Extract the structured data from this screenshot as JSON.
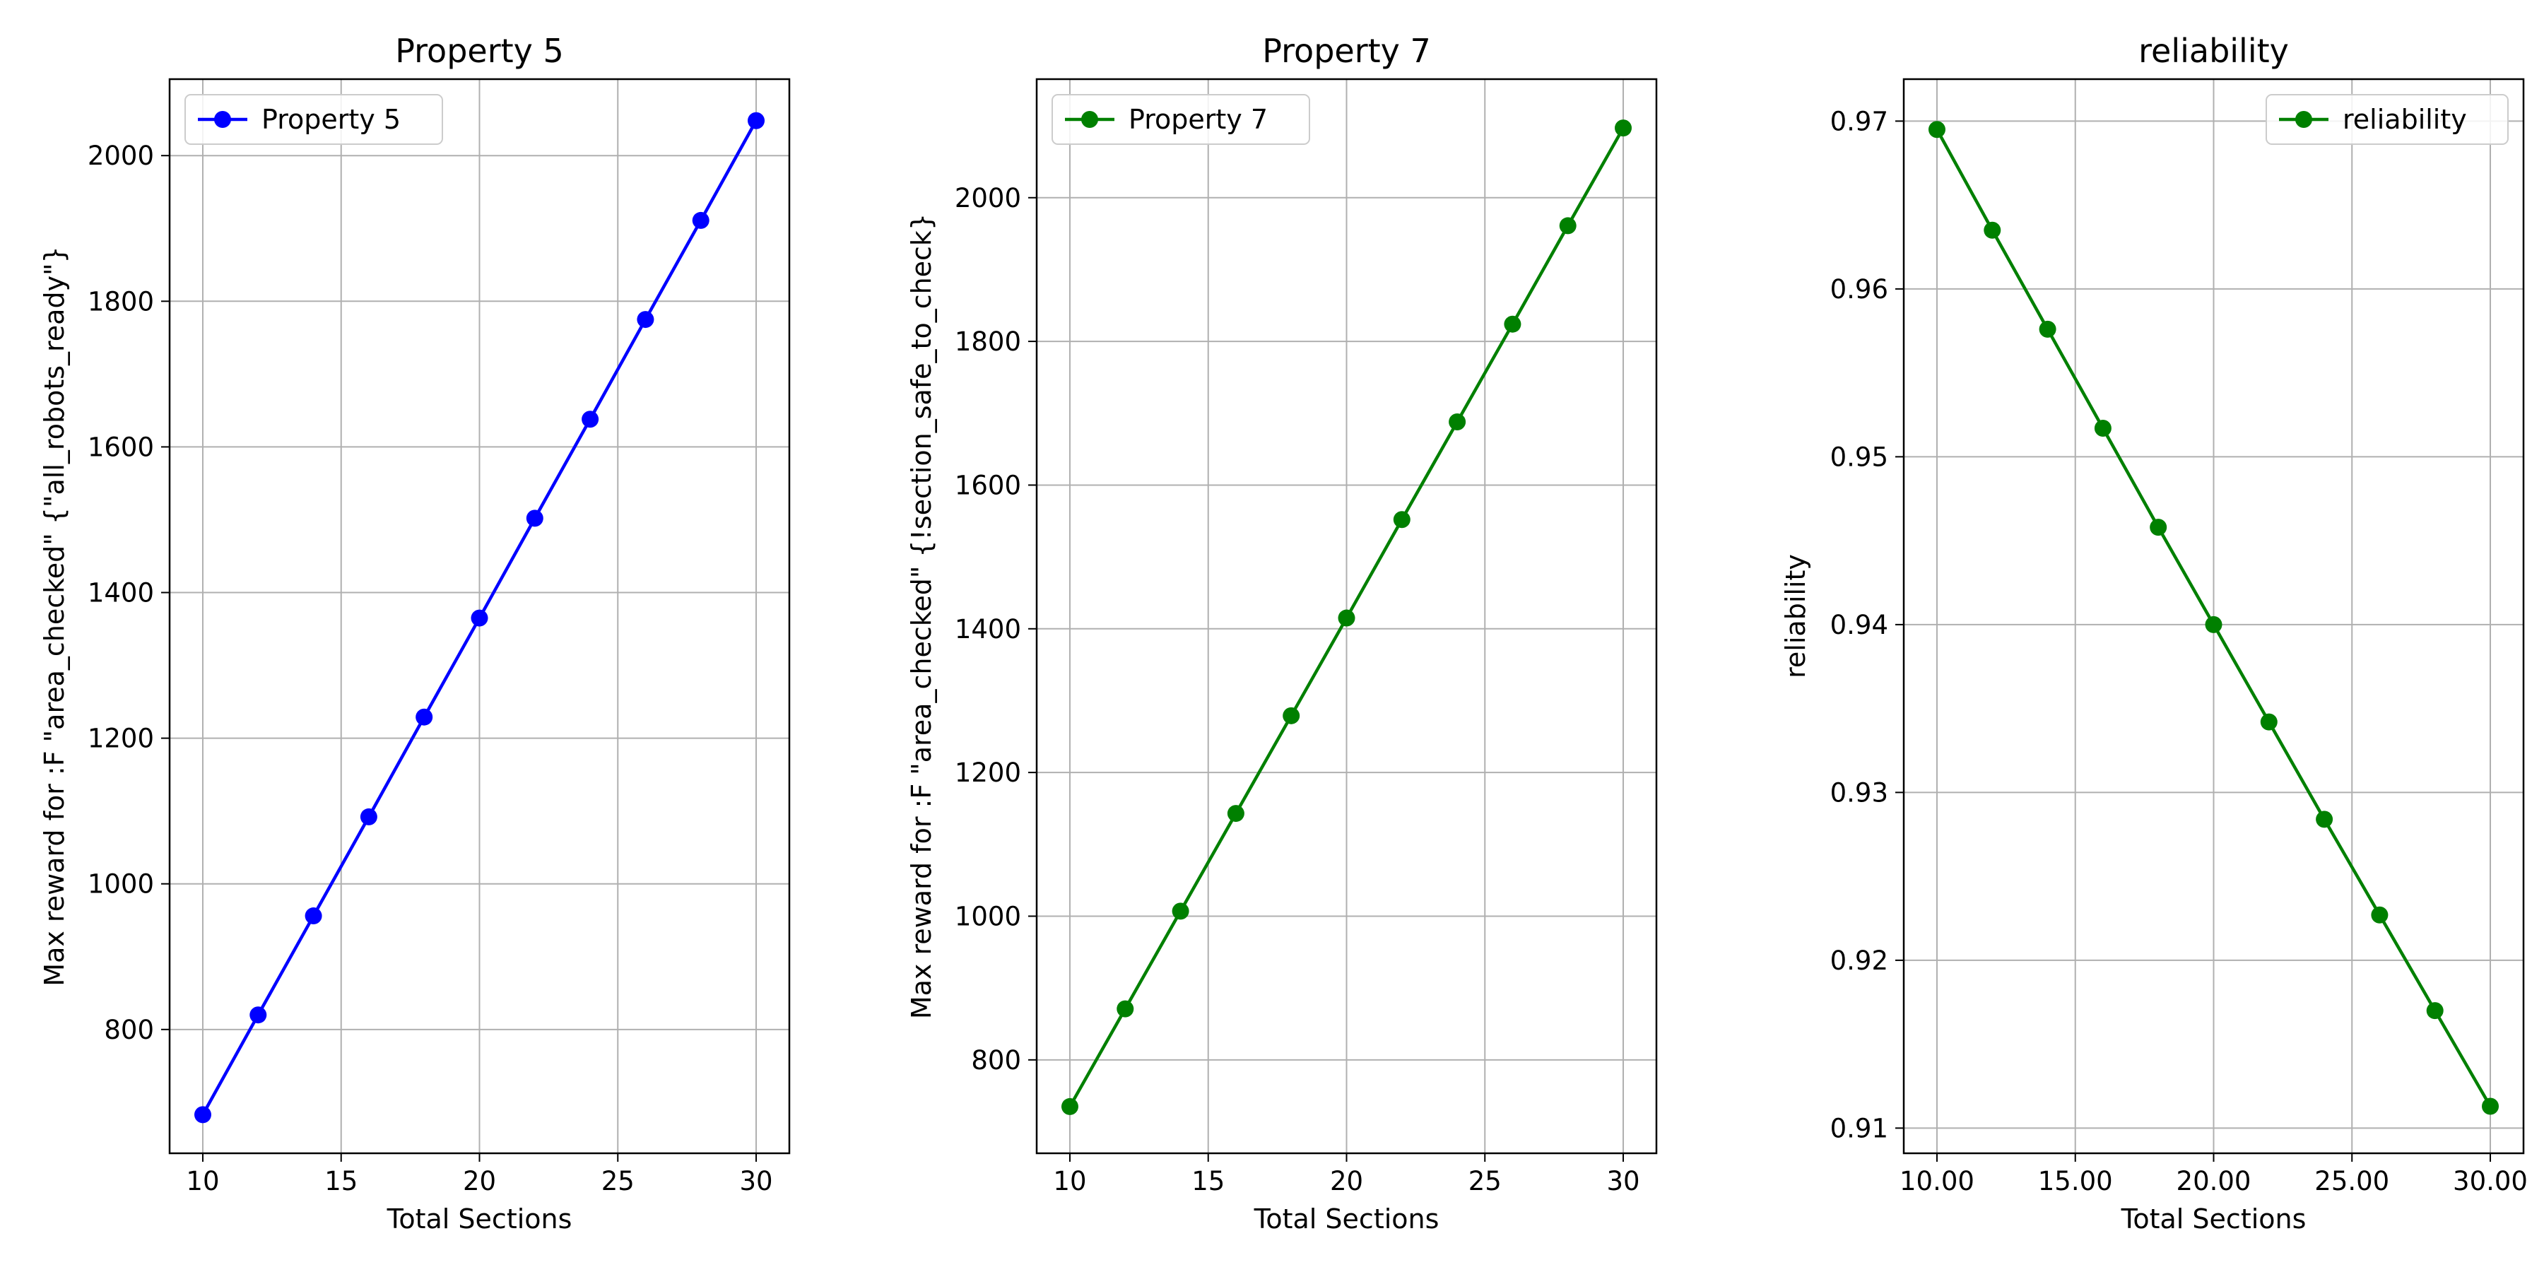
{
  "chart_data": [
    {
      "type": "line",
      "title": "Property 5",
      "xlabel": "Total Sections",
      "ylabel": "Max reward for :F \"area_checked\" {\"all_robots_ready\"}",
      "xlim": [
        8.8,
        31.2
      ],
      "ylim": [
        630,
        2105
      ],
      "xticks": [
        10,
        15,
        20,
        25,
        30
      ],
      "yticks": [
        800,
        1000,
        1200,
        1400,
        1600,
        1800,
        2000
      ],
      "tick_format": "int",
      "grid": true,
      "legend_position": "top-left",
      "color": "#0000ff",
      "series": [
        {
          "name": "Property 5",
          "x": [
            10,
            12,
            14,
            16,
            18,
            20,
            22,
            24,
            26,
            28,
            30
          ],
          "y": [
            683,
            820,
            956,
            1092,
            1229,
            1365,
            1502,
            1638,
            1775,
            1911,
            2048
          ]
        }
      ]
    },
    {
      "type": "line",
      "title": "Property 7",
      "xlabel": "Total Sections",
      "ylabel": "Max reward for :F \"area_checked\" {!section_safe_to_check}",
      "xlim": [
        8.8,
        31.2
      ],
      "ylim": [
        670,
        2165
      ],
      "xticks": [
        10,
        15,
        20,
        25,
        30
      ],
      "yticks": [
        800,
        1000,
        1200,
        1400,
        1600,
        1800,
        2000
      ],
      "tick_format": "int",
      "grid": true,
      "legend_position": "top-left",
      "color": "#008000",
      "series": [
        {
          "name": "Property 7",
          "x": [
            10,
            12,
            14,
            16,
            18,
            20,
            22,
            24,
            26,
            28,
            30
          ],
          "y": [
            735,
            871,
            1007,
            1143,
            1279,
            1415,
            1552,
            1688,
            1824,
            1961,
            2097
          ]
        }
      ]
    },
    {
      "type": "line",
      "title": "reliability",
      "xlabel": "Total Sections",
      "ylabel": "reliability",
      "xlim": [
        8.8,
        31.2
      ],
      "ylim": [
        0.9085,
        0.9725
      ],
      "xticks": [
        10,
        15,
        20,
        25,
        30
      ],
      "yticks": [
        0.91,
        0.92,
        0.93,
        0.94,
        0.95,
        0.96,
        0.97
      ],
      "tick_format": "2dp",
      "grid": true,
      "legend_position": "top-right",
      "color": "#008000",
      "series": [
        {
          "name": "reliability",
          "x": [
            10,
            12,
            14,
            16,
            18,
            20,
            22,
            24,
            26,
            28,
            30
          ],
          "y": [
            0.9695,
            0.9635,
            0.9576,
            0.9517,
            0.9458,
            0.94,
            0.9342,
            0.9284,
            0.9227,
            0.917,
            0.9113
          ]
        }
      ]
    }
  ]
}
